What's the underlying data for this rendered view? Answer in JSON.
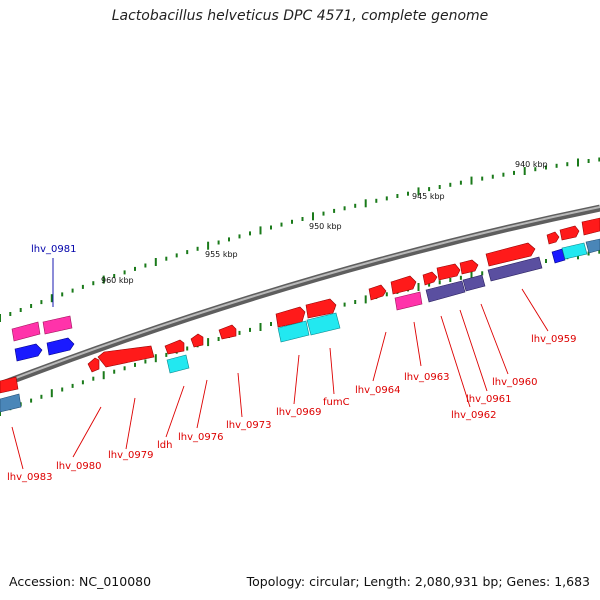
{
  "title": "Lactobacillus helveticus DPC 4571, complete genome",
  "footer": {
    "accession": "Accession: NC_010080",
    "summary": "Topology: circular; Length: 2,080,931 bp; Genes: 1,683"
  },
  "scale_labels": [
    "940 kbp",
    "945 kbp",
    "950 kbp",
    "955 kbp",
    "960 kbp"
  ],
  "gene_labels": [
    {
      "id": "lhv_0981",
      "text": "lhv_0981",
      "color": "#0000aa"
    },
    {
      "id": "lhv_0959",
      "text": "lhv_0959",
      "color": "#dd0000"
    },
    {
      "id": "lhv_0960",
      "text": "lhv_0960",
      "color": "#dd0000"
    },
    {
      "id": "lhv_0961",
      "text": "lhv_0961",
      "color": "#dd0000"
    },
    {
      "id": "lhv_0962",
      "text": "lhv_0962",
      "color": "#dd0000"
    },
    {
      "id": "lhv_0963",
      "text": "lhv_0963",
      "color": "#dd0000"
    },
    {
      "id": "lhv_0964",
      "text": "lhv_0964",
      "color": "#dd0000"
    },
    {
      "id": "fumC",
      "text": "fumC",
      "color": "#dd0000"
    },
    {
      "id": "lhv_0969",
      "text": "lhv_0969",
      "color": "#dd0000"
    },
    {
      "id": "lhv_0973",
      "text": "lhv_0973",
      "color": "#dd0000"
    },
    {
      "id": "lhv_0976",
      "text": "lhv_0976",
      "color": "#dd0000"
    },
    {
      "id": "ldh",
      "text": "ldh",
      "color": "#dd0000"
    },
    {
      "id": "lhv_0979",
      "text": "lhv_0979",
      "color": "#dd0000"
    },
    {
      "id": "lhv_0980",
      "text": "lhv_0980",
      "color": "#dd0000"
    },
    {
      "id": "lhv_0983",
      "text": "lhv_0983",
      "color": "#dd0000"
    }
  ],
  "colors": {
    "red": "#ff1a1a",
    "magenta": "#ff33aa",
    "blue": "#1a1aff",
    "cyan": "#22e8f0",
    "purple": "#5a4fa0",
    "steel": "#4a86b8",
    "tick": "#1a7a1a",
    "backbone": "#888888"
  }
}
